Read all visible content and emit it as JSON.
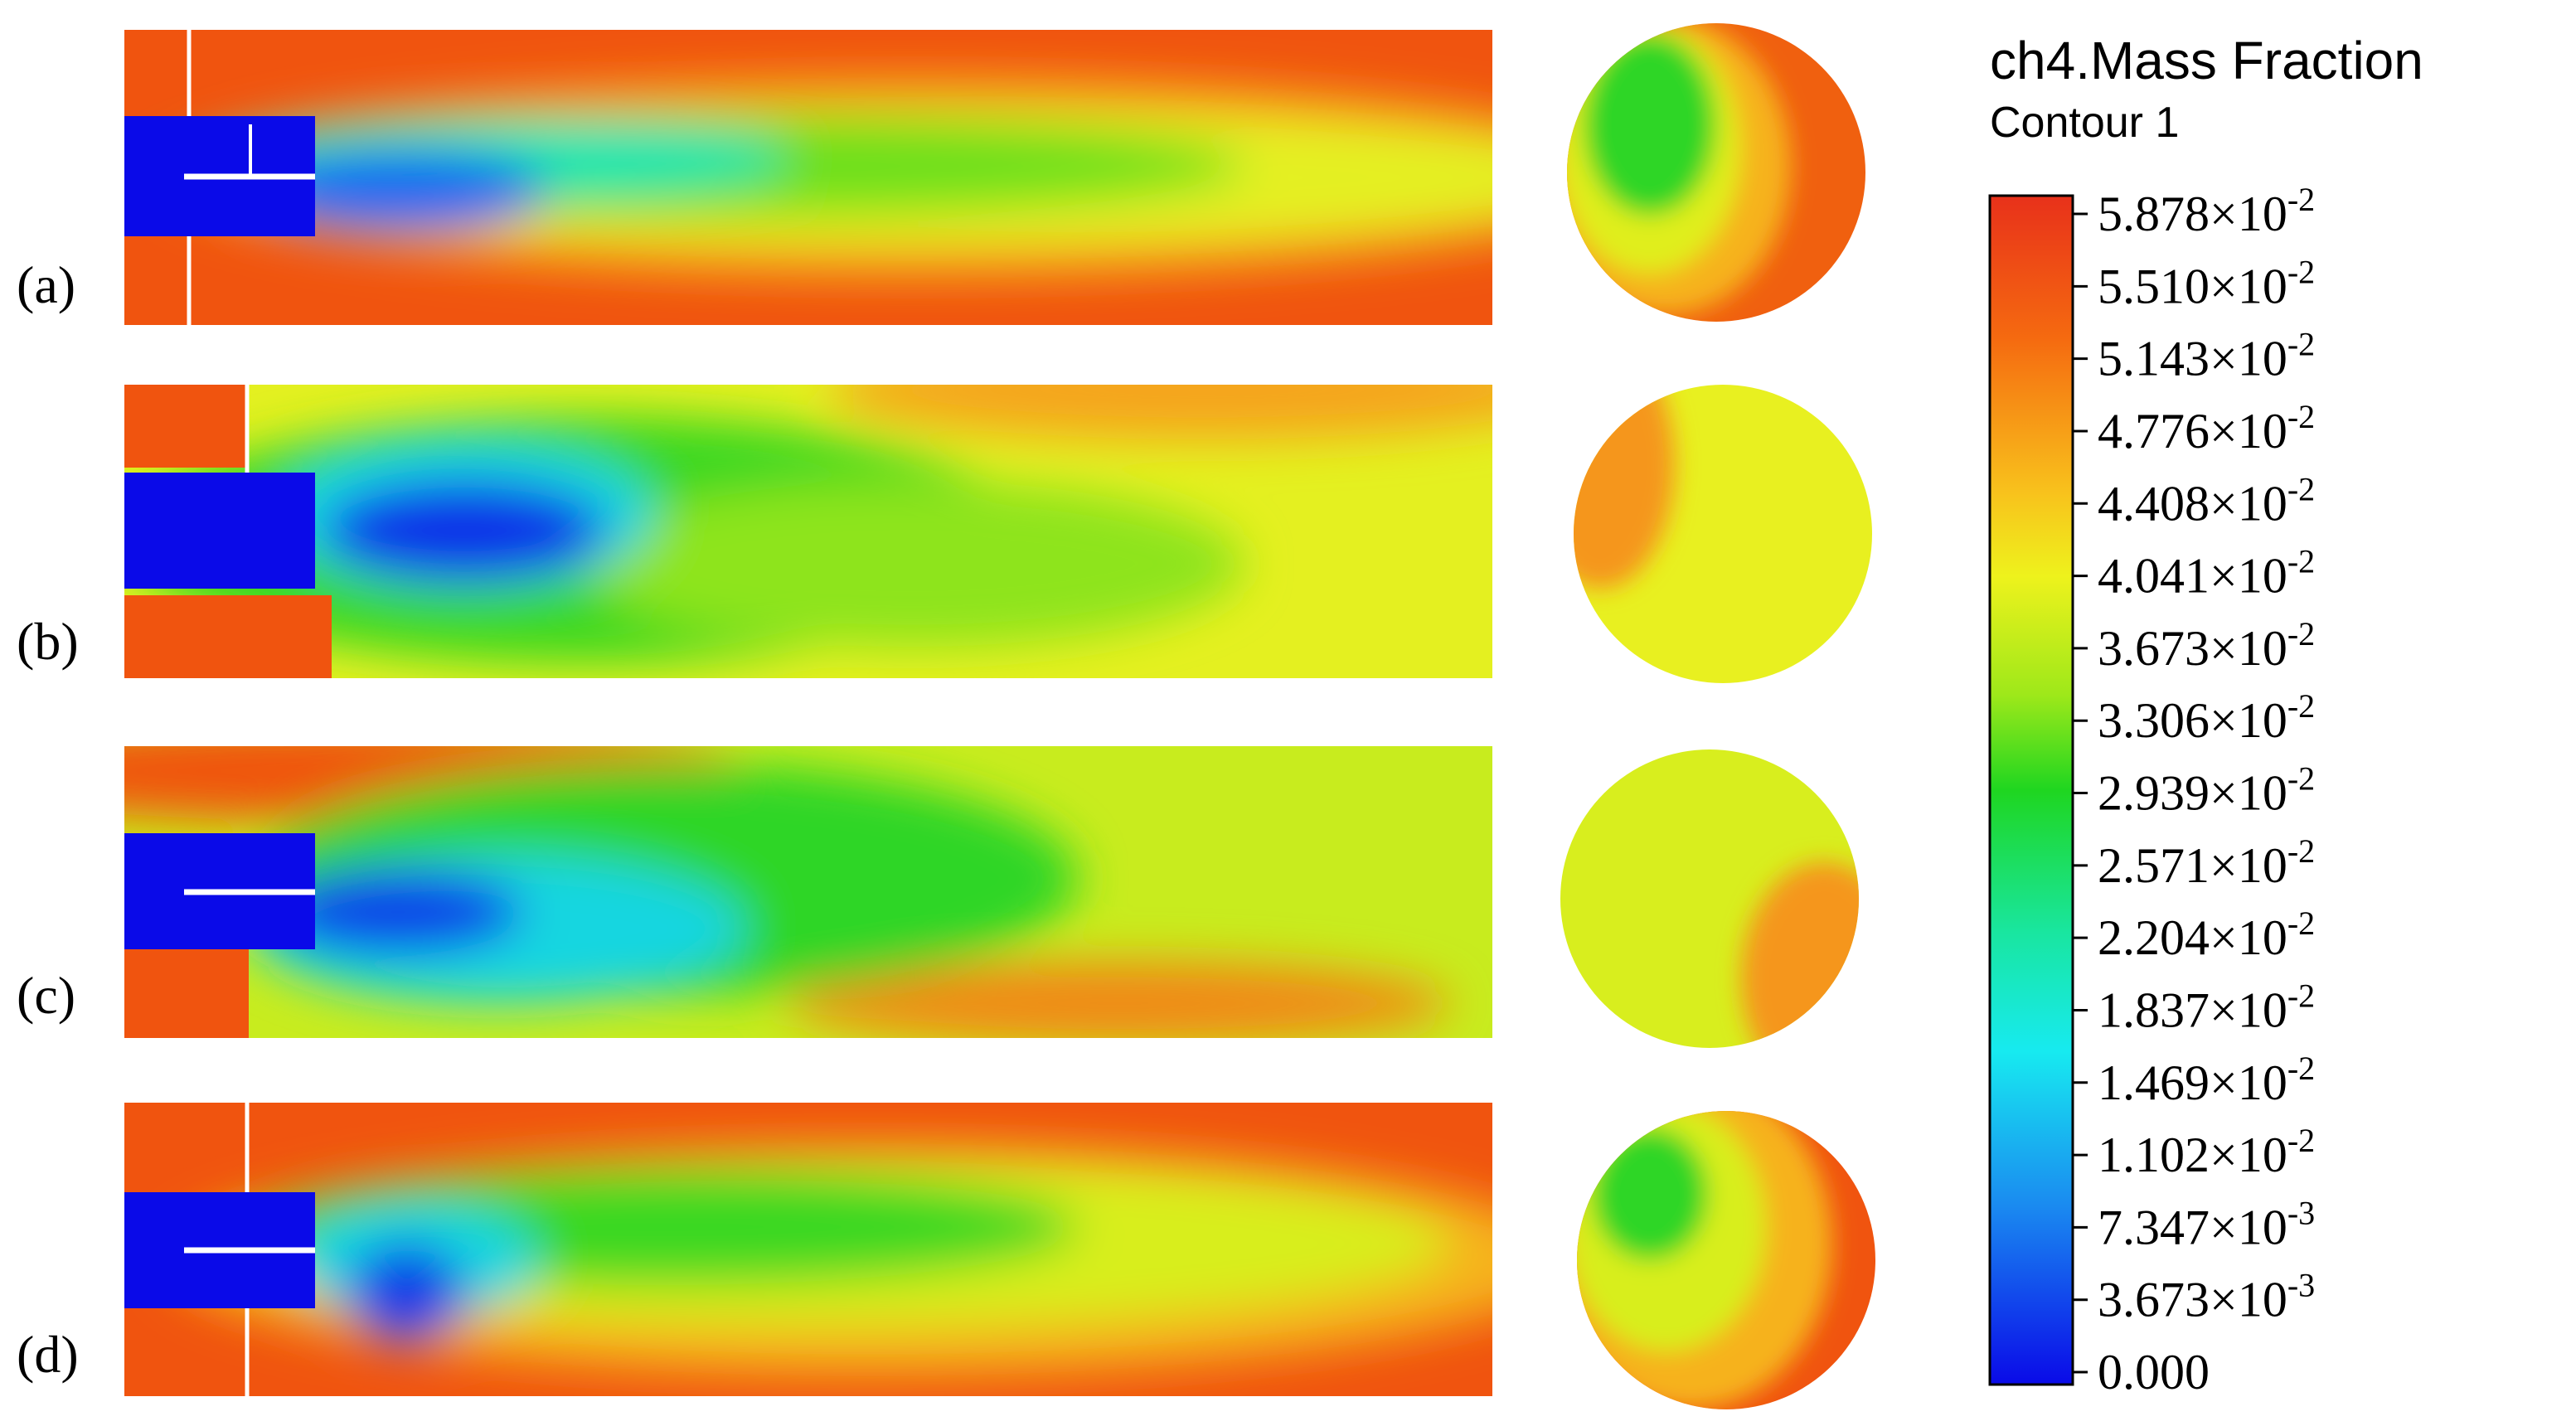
{
  "panels": [
    {
      "label": "(a)"
    },
    {
      "label": "(b)"
    },
    {
      "label": "(c)"
    },
    {
      "label": "(d)"
    }
  ],
  "legend": {
    "title": "ch4.Mass Fraction",
    "subtitle": "Contour 1",
    "ticks": [
      {
        "base": "5.878×10",
        "exponent": "-2"
      },
      {
        "base": "5.510×10",
        "exponent": "-2"
      },
      {
        "base": "5.143×10",
        "exponent": "-2"
      },
      {
        "base": "4.776×10",
        "exponent": "-2"
      },
      {
        "base": "4.408×10",
        "exponent": "-2"
      },
      {
        "base": "4.041×10",
        "exponent": "-2"
      },
      {
        "base": "3.673×10",
        "exponent": "-2"
      },
      {
        "base": "3.306×10",
        "exponent": "-2"
      },
      {
        "base": "2.939×10",
        "exponent": "-2"
      },
      {
        "base": "2.571×10",
        "exponent": "-2"
      },
      {
        "base": "2.204×10",
        "exponent": "-2"
      },
      {
        "base": "1.837×10",
        "exponent": "-2"
      },
      {
        "base": "1.469×10",
        "exponent": "-2"
      },
      {
        "base": "1.102×10",
        "exponent": "-2"
      },
      {
        "base": "7.347×10",
        "exponent": "-3"
      },
      {
        "base": "3.673×10",
        "exponent": "-3"
      },
      {
        "base": "0.000"
      }
    ]
  }
}
